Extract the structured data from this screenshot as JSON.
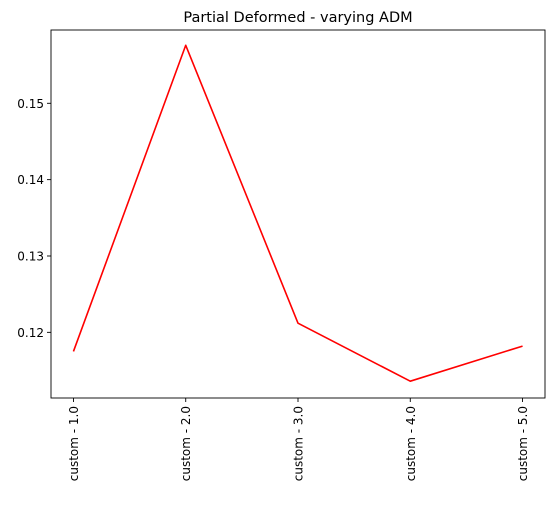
{
  "chart_data": {
    "type": "line",
    "title": "Partial Deformed - varying ADM",
    "xlabel": "",
    "ylabel": "",
    "categories": [
      "custom - 1.0",
      "custom - 2.0",
      "custom - 3.0",
      "custom - 4.0",
      "custom - 5.0"
    ],
    "series": [
      {
        "color": "#ff0000",
        "values": [
          0.1175,
          0.1576,
          0.1212,
          0.1136,
          0.1182
        ]
      }
    ],
    "ylim": [
      0.1114,
      0.1596
    ],
    "yticks": [
      0.12,
      0.13,
      0.14,
      0.15
    ],
    "ytick_labels": [
      "0.12",
      "0.13",
      "0.14",
      "0.15"
    ],
    "grid": false,
    "legend": "none"
  }
}
